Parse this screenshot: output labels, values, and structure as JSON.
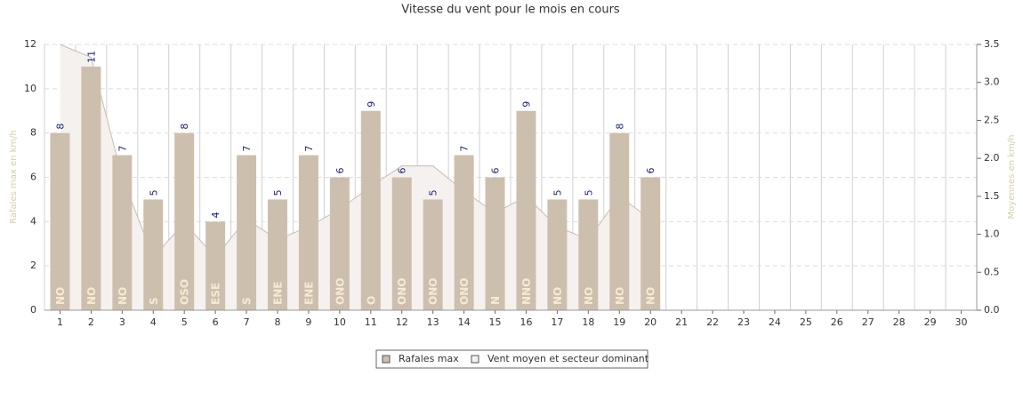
{
  "chart_data": {
    "type": "bar",
    "title": "Vitesse du vent pour le mois en cours",
    "y_label": "Rafales max en km/h",
    "y2_label": "Moyennes en km/h",
    "categories": [
      "1",
      "2",
      "3",
      "4",
      "5",
      "6",
      "7",
      "8",
      "9",
      "10",
      "11",
      "12",
      "13",
      "14",
      "15",
      "16",
      "17",
      "18",
      "19",
      "20",
      "21",
      "22",
      "23",
      "24",
      "25",
      "26",
      "27",
      "28",
      "29",
      "30"
    ],
    "series": [
      {
        "name": "Rafales max",
        "color": "#cdbfae",
        "values": [
          8,
          11,
          7,
          5,
          8,
          4,
          7,
          5,
          7,
          6,
          9,
          6,
          5,
          7,
          6,
          9,
          5,
          5,
          8,
          6,
          null,
          null,
          null,
          null,
          null,
          null,
          null,
          null,
          null,
          null
        ]
      },
      {
        "name": "Vent moyen et secteur dominant",
        "color": "#f5f1ee",
        "axis": "y2",
        "values": [
          3.5,
          3.33,
          1.75,
          0.7,
          1.15,
          0.7,
          1.2,
          0.93,
          1.1,
          1.33,
          1.63,
          1.9,
          1.9,
          1.57,
          1.28,
          1.5,
          1.1,
          0.93,
          1.5,
          1.2,
          null,
          null,
          null,
          null,
          null,
          null,
          null,
          null,
          null,
          null
        ],
        "labels": [
          "NO",
          "NO",
          "NO",
          "S",
          "OSO",
          "ESE",
          "S",
          "ENE",
          "ENE",
          "ONO",
          "O",
          "ONO",
          "ONO",
          "ONO",
          "N",
          "NNO",
          "NO",
          "NO",
          "NO",
          "NO",
          null,
          null,
          null,
          null,
          null,
          null,
          null,
          null,
          null,
          null
        ]
      }
    ],
    "ylim": [
      0,
      12
    ],
    "yticks": [
      0,
      2,
      4,
      6,
      8,
      10,
      12
    ],
    "y2lim": [
      0,
      3.5
    ],
    "y2ticks": [
      {
        "value": 0,
        "label": "0.0"
      },
      0.5,
      {
        "value": 1,
        "label": "1.0"
      },
      1.5,
      {
        "value": 2,
        "label": "2.0"
      },
      2.5,
      {
        "value": 3,
        "label": "3.0"
      },
      3.5
    ],
    "grid": true
  }
}
